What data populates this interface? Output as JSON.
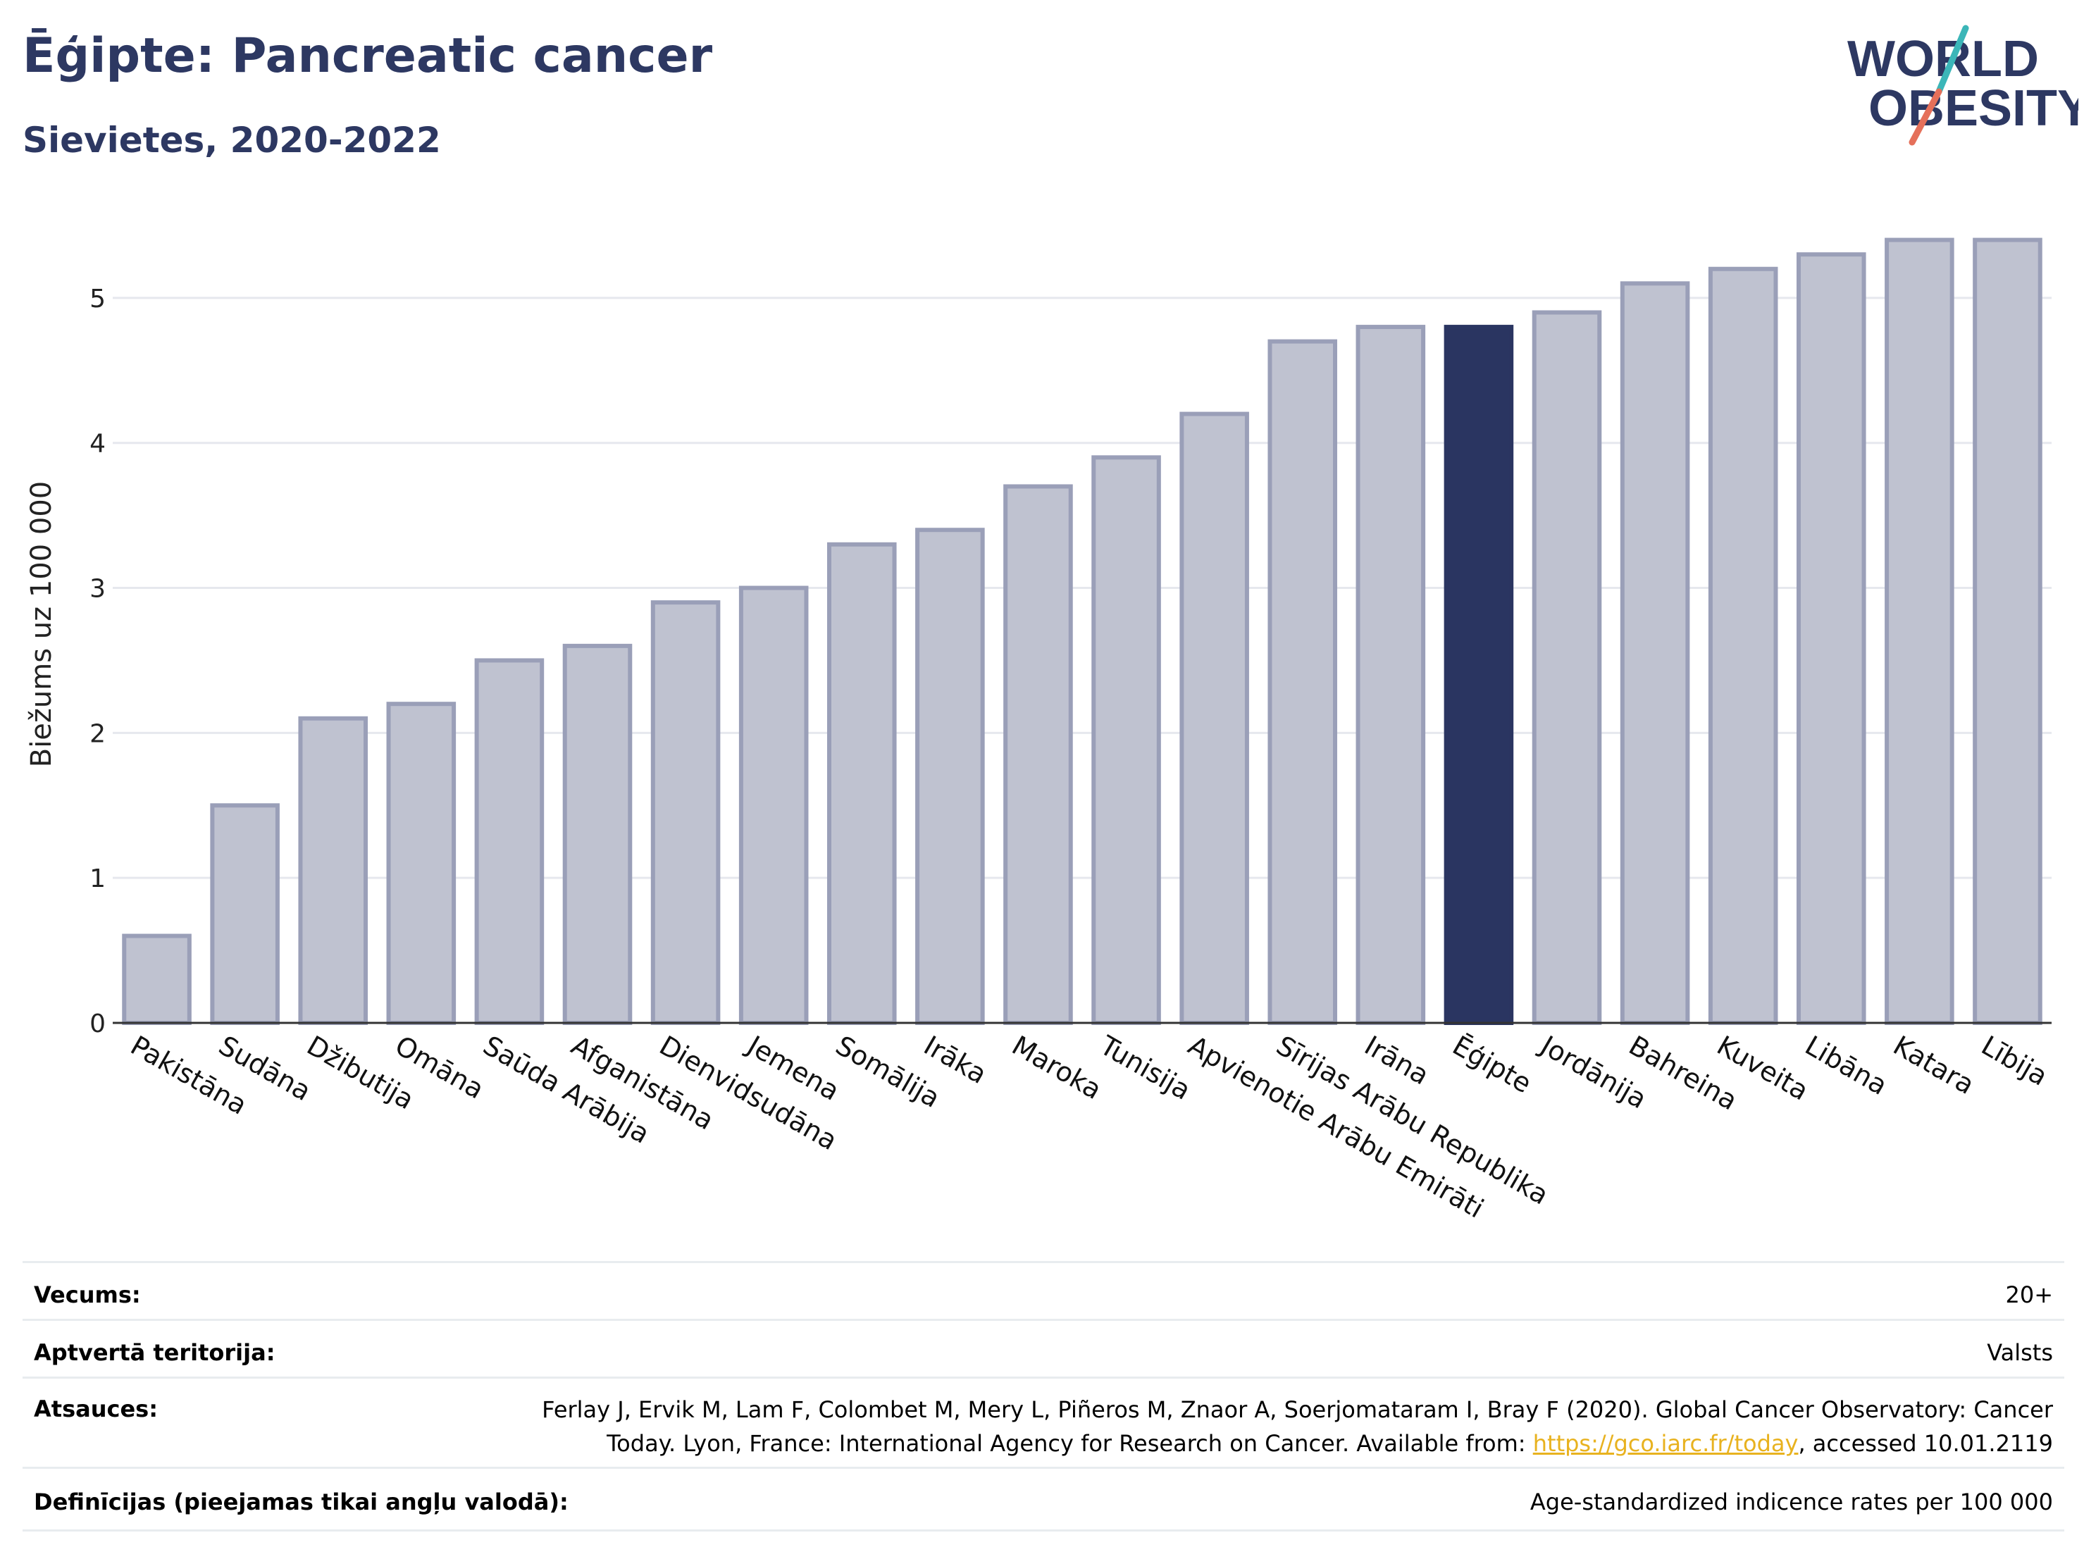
{
  "header": {
    "title": "Ēģipte: Pancreatic cancer",
    "subtitle": "Sievietes, 2020-2022",
    "logo_line1": "WORLD",
    "logo_line2": "OBESITY"
  },
  "colors": {
    "bar": "#bfc2d0",
    "bar_border": "#9a9fb8",
    "highlight": "#2a3561",
    "title": "#2d3862",
    "grid": "#e6e8ee",
    "logo_teal": "#3bb6b8",
    "logo_coral": "#e5705a",
    "link": "#e8b21f"
  },
  "chart_data": {
    "type": "bar",
    "ylabel": "Biežums uz 100 000",
    "xlabel": "",
    "ylim": [
      0,
      5.5
    ],
    "yticks": [
      0,
      1,
      2,
      3,
      4,
      5
    ],
    "grid": true,
    "highlight": "Ēģipte",
    "categories": [
      "Pakistāna",
      "Sudāna",
      "Džibutija",
      "Omāna",
      "Saūda Arābija",
      "Afganistāna",
      "Dienvidsudāna",
      "Jemena",
      "Somālija",
      "Irāka",
      "Maroka",
      "Tunisija",
      "Apvienotie Arābu Emirāti",
      "Sīrijas Arābu Republika",
      "Irāna",
      "Ēģipte",
      "Jordānija",
      "Bahreina",
      "Kuveita",
      "Libāna",
      "Katara",
      "Lībija"
    ],
    "values": [
      0.6,
      1.5,
      2.1,
      2.2,
      2.5,
      2.6,
      2.9,
      3.0,
      3.3,
      3.4,
      3.7,
      3.9,
      4.2,
      4.7,
      4.8,
      4.8,
      4.9,
      5.1,
      5.2,
      5.3,
      5.4,
      5.4
    ]
  },
  "meta": {
    "age_label": "Vecums:",
    "age_value": "20+",
    "territory_label": "Aptvertā teritorija:",
    "territory_value": "Valsts",
    "refs_label": "Atsauces:",
    "refs_line1": "Ferlay J, Ervik M, Lam F, Colombet M, Mery L, Piñeros M, Znaor A, Soerjomataram I, Bray F (2020). Global Cancer Observatory: Cancer",
    "refs_line2_pre": "Today. Lyon, France: International Agency for Research on Cancer. Available from: ",
    "refs_link": "https://gco.iarc.fr/today",
    "refs_line2_post": ", accessed 10.01.2119",
    "defs_label": "Definīcijas (pieejamas tikai angļu valodā):",
    "defs_value": "Age-standardized indicence rates per 100 000"
  }
}
